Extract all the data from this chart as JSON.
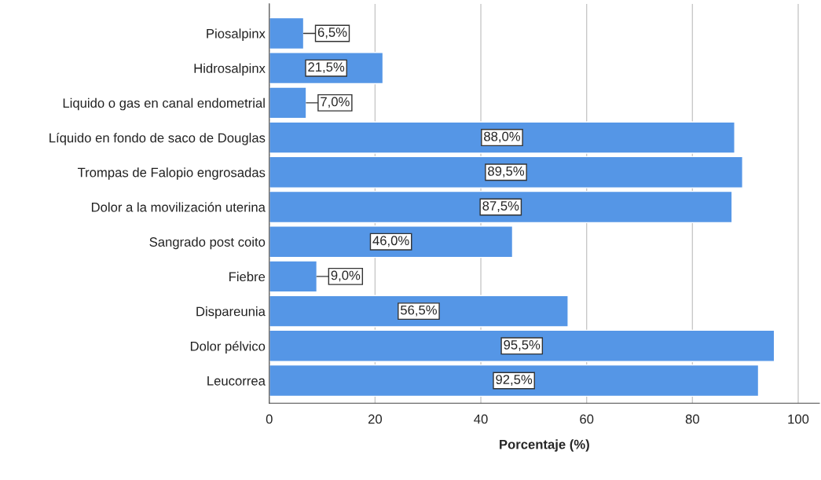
{
  "chart_data": {
    "type": "bar",
    "orientation": "horizontal",
    "xlabel": "Porcentaje (%)",
    "categories": [
      "Piosalpinx",
      "Hidrosalpinx",
      "Liquido o gas en canal endometrial",
      "Líquido en fondo de saco de Douglas",
      "Trompas de Falopio engrosadas",
      "Dolor a la movilización uterina",
      "Sangrado post coito",
      "Fiebre",
      "Dispareunia",
      "Dolor pélvico",
      "Leucorrea"
    ],
    "values": [
      6.5,
      21.5,
      7.0,
      88.0,
      89.5,
      87.5,
      46.0,
      9.0,
      56.5,
      95.5,
      92.5
    ],
    "value_labels": [
      "6,5%",
      "21,5%",
      "7,0%",
      "88,0%",
      "89,5%",
      "87,5%",
      "46,0%",
      "9,0%",
      "56,5%",
      "95,5%",
      "92,5%"
    ],
    "color": "#5596e6",
    "xlim": [
      0,
      104
    ],
    "xticks": [
      0,
      20,
      40,
      60,
      80,
      100
    ],
    "grid": "x"
  }
}
